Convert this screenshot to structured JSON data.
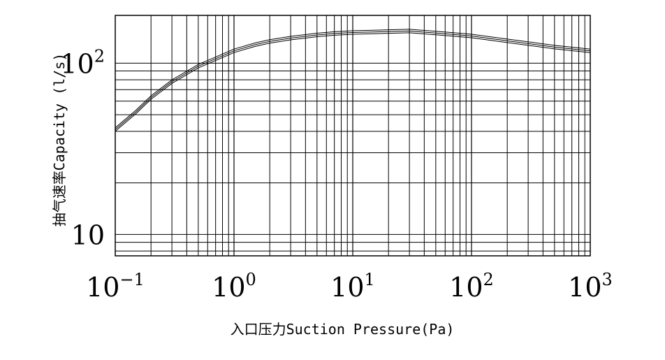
{
  "chart_data": {
    "type": "line",
    "x_scale": "log",
    "y_scale": "log",
    "xlim": [
      0.1,
      1000
    ],
    "ylim": [
      7.5,
      190
    ],
    "grid": true,
    "xlabel": "入口压力Suction Pressure(Pa)",
    "ylabel": "抽气速率Capacity (l/s)",
    "x_ticks": [
      {
        "base": "10",
        "exp": "−1",
        "value": 0.1
      },
      {
        "base": "10",
        "exp": "0",
        "value": 1
      },
      {
        "base": "10",
        "exp": "1",
        "value": 10
      },
      {
        "base": "10",
        "exp": "2",
        "value": 100
      },
      {
        "base": "10",
        "exp": "3",
        "value": 1000
      }
    ],
    "y_ticks": [
      {
        "base": "10",
        "exp": "",
        "value": 10
      },
      {
        "base": "10",
        "exp": "2",
        "value": 100
      }
    ],
    "series": [
      {
        "x": [
          0.1,
          0.15,
          0.2,
          0.3,
          0.5,
          0.7,
          1,
          1.5,
          2,
          3,
          5,
          7,
          10,
          15,
          20,
          30,
          50,
          70,
          100,
          200,
          500,
          1000
        ],
        "y": [
          41,
          52,
          63,
          78,
          96,
          106,
          118,
          128,
          134,
          140,
          146,
          149,
          151,
          152,
          153,
          154,
          150,
          147,
          144,
          135,
          124,
          118
        ]
      }
    ]
  }
}
